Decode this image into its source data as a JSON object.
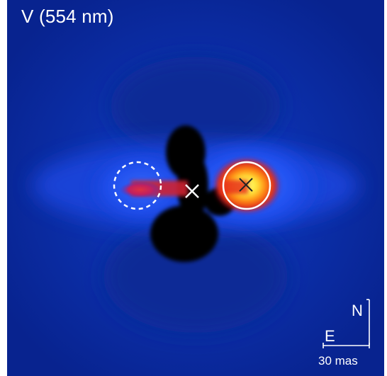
{
  "image": {
    "band_label": "V (554 nm)",
    "compass": {
      "north": "N",
      "east": "E"
    },
    "scale_bar": {
      "label": "30 mas"
    },
    "colors": {
      "background": "#0a2a9c",
      "deep_blue": "#061f8a",
      "glow_blue": "#2a58ff",
      "red": "#e2241a",
      "orange": "#ff7a10",
      "yellow": "#fff34a",
      "mask_black": "#000000",
      "marker_white": "#ffffff"
    },
    "markers": [
      {
        "name": "center-cross",
        "shape": "x-cross"
      },
      {
        "name": "bright-source",
        "shape": "x-cross-in-solid-circle"
      },
      {
        "name": "companion-source",
        "shape": "dashed-circle"
      }
    ]
  }
}
